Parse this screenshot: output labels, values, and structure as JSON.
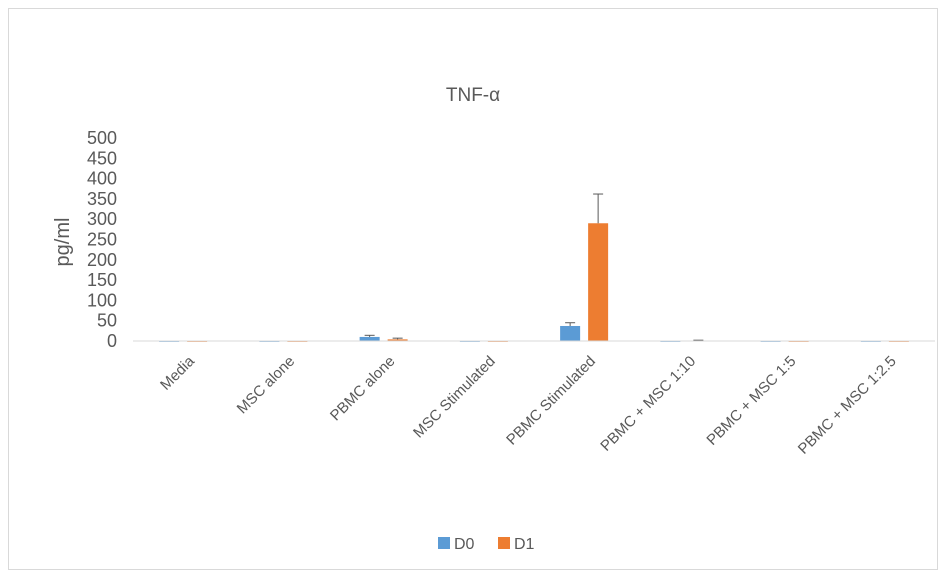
{
  "chart_data": {
    "type": "bar",
    "title": "TNF-α",
    "xlabel": "",
    "ylabel": "pg/ml",
    "ylim": [
      0,
      500
    ],
    "yticks": [
      0,
      50,
      100,
      150,
      200,
      250,
      300,
      350,
      400,
      450,
      500
    ],
    "grid": false,
    "legend_position": "bottom",
    "categories": [
      "Media",
      "MSC alone",
      "PBMC alone",
      "MSC Stimulated",
      "PBMC Stimulated",
      "PBMC + MSC 1:10",
      "PBMC + MSC 1:5",
      "PBMC + MSC 1:2.5"
    ],
    "series": [
      {
        "name": "D0",
        "color": "#5b9bd5",
        "values": [
          -2,
          -2,
          10,
          -2,
          37,
          -2,
          -2,
          -2
        ],
        "errors": [
          0,
          0,
          4,
          0,
          8,
          0,
          0,
          0
        ]
      },
      {
        "name": "D1",
        "color": "#ed7d31",
        "values": [
          -2,
          -2,
          4,
          -2,
          290,
          0,
          -2,
          -2
        ],
        "errors": [
          0,
          0,
          3,
          0,
          72,
          2,
          0,
          0
        ]
      }
    ]
  }
}
